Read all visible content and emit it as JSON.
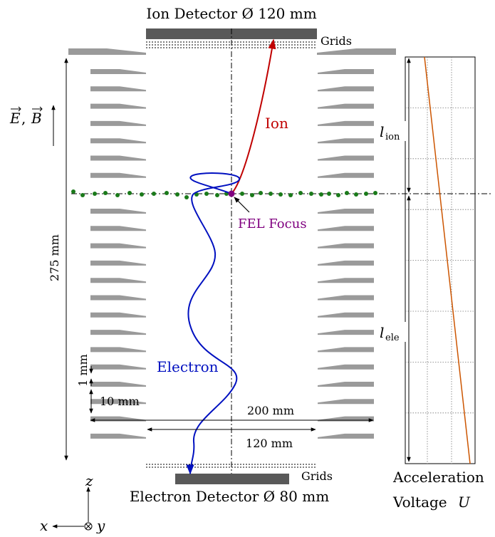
{
  "labels": {
    "ion_detector": "Ion Detector Ø 120 mm",
    "electron_detector": "Electron Detector Ø 80 mm",
    "grids_top": "Grids",
    "grids_bottom": "Grids",
    "ion": "Ion",
    "electron": "Electron",
    "fel_focus": "FEL Focus",
    "field_E": "E",
    "field_B": "B",
    "field_sep": ",",
    "length_275": "275 mm",
    "dim_1mm": "1 mm",
    "dim_10mm": "10 mm",
    "dim_200mm": "200 mm",
    "dim_120mm": "120 mm",
    "l_ion_base": "l",
    "l_ion_sub": "ion",
    "l_ele_base": "l",
    "l_ele_sub": "ele",
    "accel_line1": "Acceleration",
    "accel_line2": "Voltage",
    "accel_var": "U",
    "axis_z": "z",
    "axis_x": "x",
    "axis_y": "y"
  },
  "colors": {
    "ion_trajectory": "#c00000",
    "electron_trajectory": "#0010c0",
    "fel_focus": "#800080",
    "green_dots": "#1a7a1a",
    "voltage_line": "#cc5500",
    "electrode": "#9a9a9a",
    "detector": "#595959"
  },
  "diagram": {
    "electrode_rows_upper": 7,
    "electrode_rows_lower": 14
  }
}
